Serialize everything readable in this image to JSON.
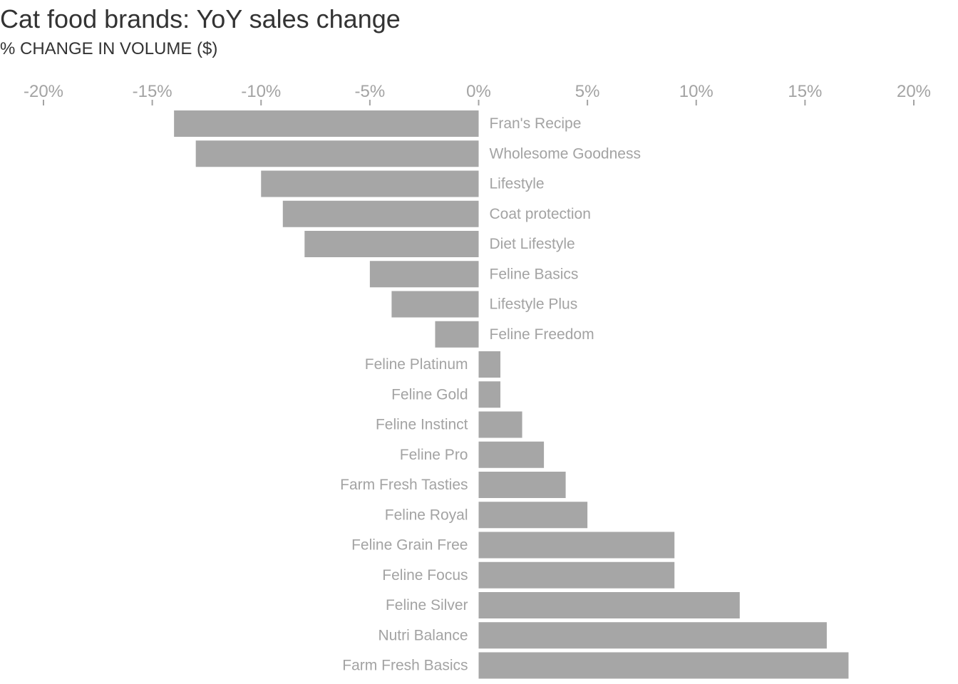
{
  "chart_data": {
    "type": "bar",
    "orientation": "horizontal",
    "title": "Cat food brands: YoY sales change",
    "subtitle": "% CHANGE IN VOLUME ($)",
    "xlabel": "",
    "ylabel": "",
    "xlim": [
      -20,
      20
    ],
    "ticks": [
      -20,
      -15,
      -10,
      -5,
      0,
      5,
      10,
      15,
      20
    ],
    "tick_labels": [
      "-20%",
      "-15%",
      "-10%",
      "-5%",
      "0%",
      "5%",
      "10%",
      "15%",
      "20%"
    ],
    "tick_position": "top",
    "grid": false,
    "legend": "none",
    "bar_color": "#a6a6a6",
    "label_color": "#a3a3a3",
    "title_color": "#333333",
    "categories": [
      "Fran's Recipe",
      "Wholesome Goodness",
      "Lifestyle",
      "Coat protection",
      "Diet Lifestyle",
      "Feline Basics",
      "Lifestyle Plus",
      "Feline Freedom",
      "Feline Platinum",
      "Feline Gold",
      "Feline Instinct",
      "Feline Pro",
      "Farm Fresh Tasties",
      "Feline Royal",
      "Feline Grain Free",
      "Feline Focus",
      "Feline Silver",
      "Nutri Balance",
      "Farm Fresh Basics"
    ],
    "values": [
      -14,
      -13,
      -10,
      -9,
      -8,
      -5,
      -4,
      -2,
      1,
      1,
      2,
      3,
      4,
      5,
      9,
      9,
      12,
      16,
      17
    ]
  }
}
